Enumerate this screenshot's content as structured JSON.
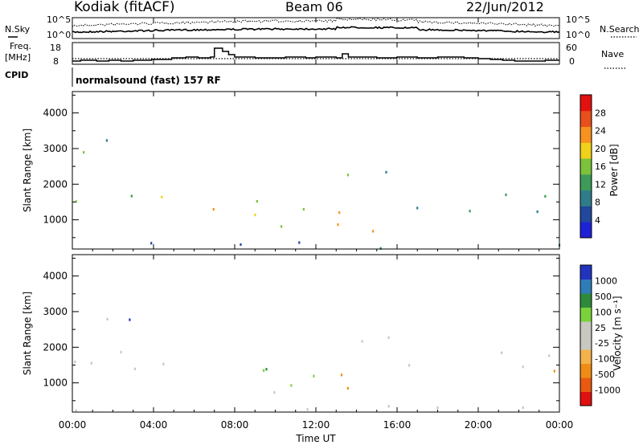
{
  "header": {
    "station": "Kodiak (fitACF)",
    "beam": "Beam 06",
    "date": "22/Jun/2012"
  },
  "noise_panel": {
    "left_label": "N.Sky",
    "right_label": "N.Search",
    "left_ticks": [
      "10^5",
      "10^0"
    ],
    "right_ticks": [
      "10^5",
      "10^0"
    ]
  },
  "freq_panel": {
    "left_label_1": "Freq.",
    "left_label_2": "[MHz]",
    "right_label": "Nave",
    "left_ticks": [
      "18",
      "8"
    ],
    "right_ticks": [
      "60",
      "0"
    ],
    "freq_steps": [
      {
        "t": 0.0,
        "v": 10
      },
      {
        "t": 0.4,
        "v": 10.5
      },
      {
        "t": 1.2,
        "v": 10
      },
      {
        "t": 1.8,
        "v": 10.5
      },
      {
        "t": 2.4,
        "v": 10
      },
      {
        "t": 3.0,
        "v": 10.5
      },
      {
        "t": 3.9,
        "v": 11
      },
      {
        "t": 4.9,
        "v": 12
      },
      {
        "t": 5.6,
        "v": 12.5
      },
      {
        "t": 6.2,
        "v": 12
      },
      {
        "t": 6.8,
        "v": 12.5
      },
      {
        "t": 7.0,
        "v": 18
      },
      {
        "t": 7.4,
        "v": 16
      },
      {
        "t": 7.7,
        "v": 14
      },
      {
        "t": 8.0,
        "v": 12.5
      },
      {
        "t": 9.0,
        "v": 12
      },
      {
        "t": 10.5,
        "v": 12.5
      },
      {
        "t": 11.5,
        "v": 12
      },
      {
        "t": 12.0,
        "v": 12.5
      },
      {
        "t": 13.0,
        "v": 12
      },
      {
        "t": 13.3,
        "v": 14.5
      },
      {
        "t": 13.6,
        "v": 12.5
      },
      {
        "t": 15.0,
        "v": 12
      },
      {
        "t": 16.0,
        "v": 12.5
      },
      {
        "t": 17.0,
        "v": 12
      },
      {
        "t": 18.0,
        "v": 12.5
      },
      {
        "t": 19.3,
        "v": 12
      },
      {
        "t": 20.0,
        "v": 11.5
      },
      {
        "t": 20.6,
        "v": 11
      },
      {
        "t": 21.2,
        "v": 10.5
      },
      {
        "t": 21.8,
        "v": 10
      },
      {
        "t": 23.3,
        "v": 10.5
      },
      {
        "t": 24.0,
        "v": 10.5
      }
    ]
  },
  "cpid_panel": {
    "label": "CPID",
    "program": "normalsound (fast) 157 RF"
  },
  "x_axis": {
    "title": "Time UT",
    "ticks": [
      "00:00",
      "04:00",
      "08:00",
      "12:00",
      "16:00",
      "20:00",
      "00:00"
    ]
  },
  "colors": {
    "power": [
      "#1e22d6",
      "#22489e",
      "#2f7d8a",
      "#3e9a58",
      "#7cc23a",
      "#f0d21a",
      "#f7921e",
      "#e8501b",
      "#e31010"
    ],
    "velocity": [
      "#e01010",
      "#e85a10",
      "#f08c15",
      "#f4b24a",
      "#c8c8c0",
      "#c8c8c0",
      "#7ad33a",
      "#2e8b3c",
      "#2f7db8",
      "#2233c0"
    ]
  },
  "chart_data": [
    {
      "type": "heatmap",
      "title": "Power",
      "xlabel": "Time UT",
      "ylabel": "Slant Range [km]",
      "xlim": [
        0,
        24
      ],
      "ylim": [
        180,
        4600
      ],
      "yticks": [
        "4000",
        "3000",
        "2000",
        "1000"
      ],
      "colorbar_label": "Power [dB]",
      "colorbar_ticks": [
        "28",
        "24",
        "20",
        "16",
        "12",
        "8",
        "4"
      ],
      "colorbar_range": [
        0,
        32
      ],
      "scatter_bands": [
        {
          "t0": 0.0,
          "t1": 2.0,
          "r0": 1400,
          "r1": 1800,
          "peak": 20
        },
        {
          "t0": 1.8,
          "t1": 3.5,
          "r0": 1500,
          "r1": 1900,
          "peak": 16
        },
        {
          "t0": 3.5,
          "t1": 5.5,
          "r0": 1300,
          "r1": 1900,
          "peak": 18
        },
        {
          "t0": 5.5,
          "t1": 7.0,
          "r0": 1100,
          "r1": 1600,
          "peak": 24
        },
        {
          "t0": 7.0,
          "t1": 9.0,
          "r0": 750,
          "r1": 1400,
          "peak": 26
        },
        {
          "t0": 9.0,
          "t1": 11.0,
          "r0": 800,
          "r1": 1700,
          "peak": 24
        },
        {
          "t0": 11.0,
          "t1": 12.5,
          "r0": 800,
          "r1": 1600,
          "peak": 24
        },
        {
          "t0": 12.5,
          "t1": 14.5,
          "r0": 800,
          "r1": 1500,
          "peak": 24
        },
        {
          "t0": 13.5,
          "t1": 16.0,
          "r0": 1800,
          "r1": 2400,
          "peak": 14
        },
        {
          "t0": 14.5,
          "t1": 16.0,
          "r0": 700,
          "r1": 1100,
          "peak": 20
        },
        {
          "t0": 16.0,
          "t1": 18.0,
          "r0": 1200,
          "r1": 1800,
          "peak": 10
        },
        {
          "t0": 19.5,
          "t1": 24.0,
          "r0": 1200,
          "r1": 1900,
          "peak": 14
        },
        {
          "t0": 0.0,
          "t1": 24.0,
          "r0": 200,
          "r1": 400,
          "peak": 8
        },
        {
          "t0": 0.0,
          "t1": 3.0,
          "r0": 2800,
          "r1": 3500,
          "peak": 16
        }
      ]
    },
    {
      "type": "heatmap",
      "title": "Velocity",
      "xlabel": "Time UT",
      "ylabel": "Slant Range [km]",
      "xlim": [
        0,
        24
      ],
      "ylim": [
        180,
        4600
      ],
      "yticks": [
        "4000",
        "3000",
        "2000",
        "1000"
      ],
      "colorbar_label": "Velocity [m s⁻¹]",
      "colorbar_ticks": [
        "1000",
        "500",
        "100",
        "25",
        "-25",
        "-100",
        "-500",
        "-1000"
      ],
      "colorbar_range": [
        -1000,
        1000
      ],
      "scatter_bands": [
        {
          "t0": 0.0,
          "t1": 7.0,
          "r0": 1300,
          "r1": 1900,
          "class": "ground"
        },
        {
          "t0": 7.0,
          "t1": 10.5,
          "r0": 750,
          "r1": 1500,
          "class": "toward"
        },
        {
          "t0": 10.5,
          "t1": 12.5,
          "r0": 900,
          "r1": 1600,
          "class": "toward"
        },
        {
          "t0": 12.5,
          "t1": 14.5,
          "r0": 800,
          "r1": 1500,
          "class": "away"
        },
        {
          "t0": 13.5,
          "t1": 16.5,
          "r0": 1700,
          "r1": 2400,
          "class": "ground"
        },
        {
          "t0": 16.0,
          "t1": 18.0,
          "r0": 1200,
          "r1": 1800,
          "class": "ground"
        },
        {
          "t0": 19.5,
          "t1": 24.0,
          "r0": 1200,
          "r1": 1900,
          "class": "ground"
        },
        {
          "t0": 0.0,
          "t1": 24.0,
          "r0": 200,
          "r1": 400,
          "class": "ground"
        },
        {
          "t0": 0.0,
          "t1": 3.0,
          "r0": 2800,
          "r1": 3500,
          "class": "mixed"
        }
      ]
    }
  ]
}
